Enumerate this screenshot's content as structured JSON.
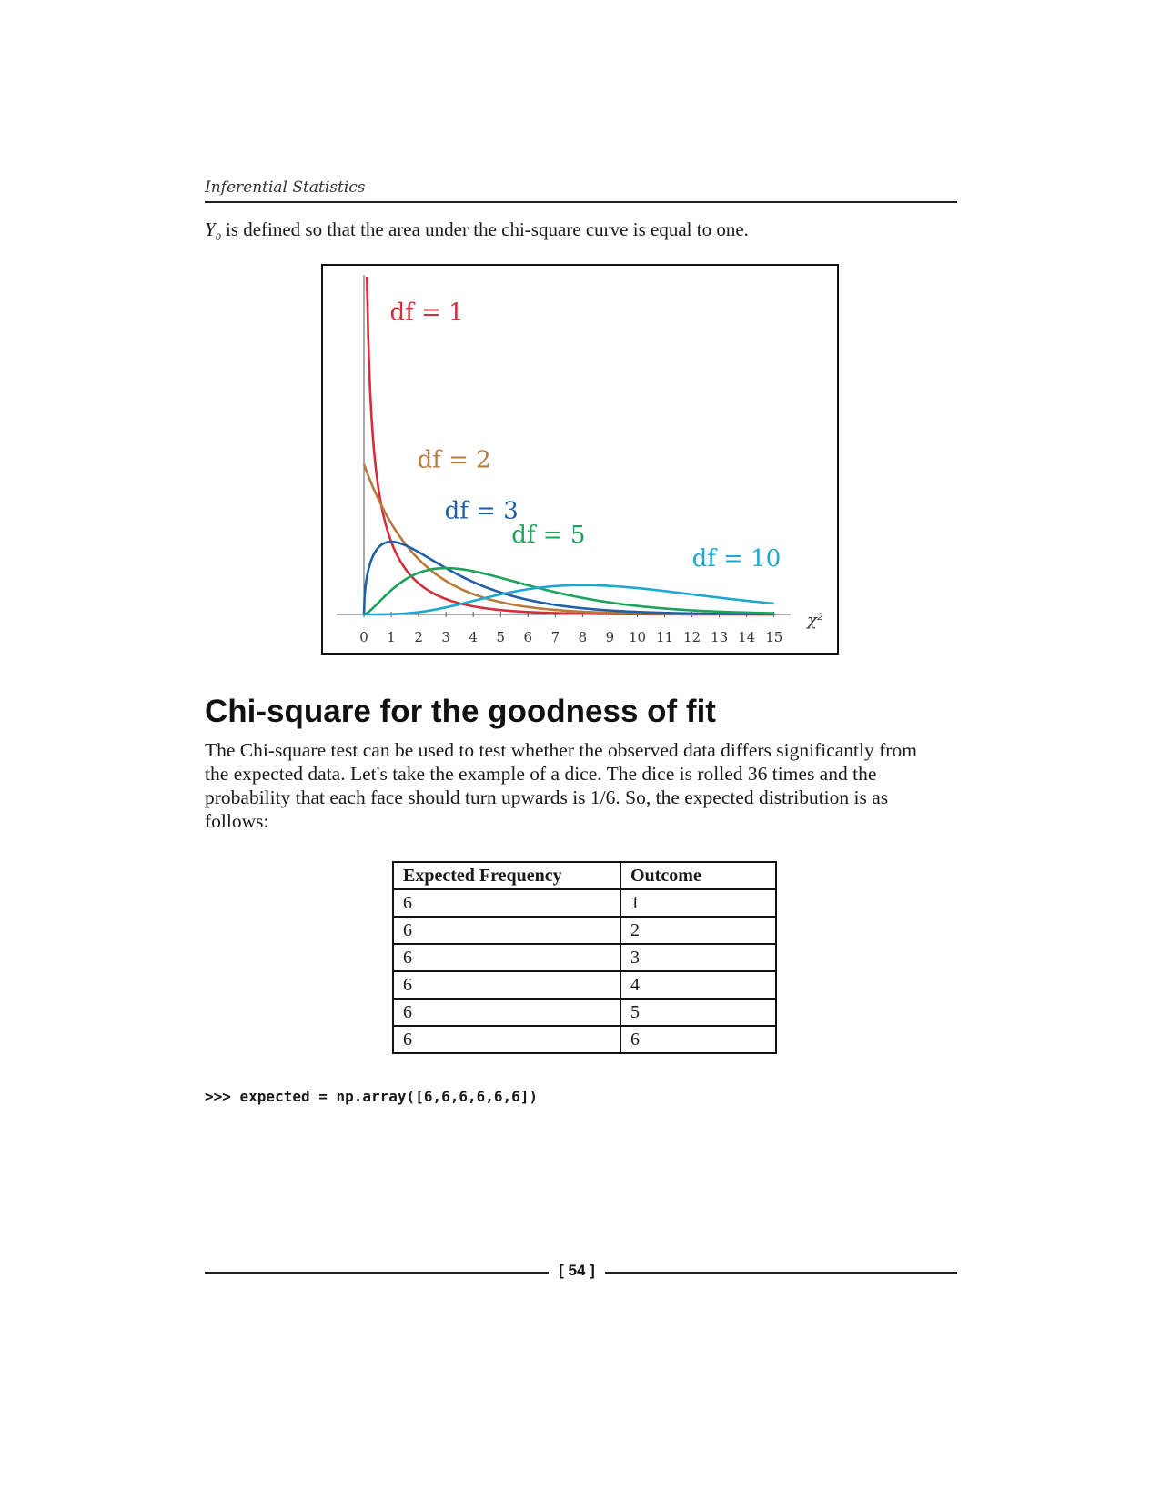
{
  "header": {
    "running_title": "Inferential Statistics"
  },
  "intro": {
    "symbol": "Y",
    "symbol_subscript": "0",
    "text": "is defined so that the area under the chi-square curve is equal to one."
  },
  "chart_data": {
    "type": "line",
    "title": "",
    "xlabel": "χ²",
    "ylabel": "",
    "xlim": [
      0,
      15
    ],
    "xticks": [
      "0",
      "1",
      "2",
      "3",
      "4",
      "5",
      "6",
      "7",
      "8",
      "9",
      "10",
      "11",
      "12",
      "13",
      "14",
      "15"
    ],
    "grid": false,
    "series": [
      {
        "name": "df = 1",
        "df": 1,
        "color": "#d62d3b"
      },
      {
        "name": "df = 2",
        "df": 2,
        "color": "#b87a3a"
      },
      {
        "name": "df = 3",
        "df": 3,
        "color": "#1f5fa8"
      },
      {
        "name": "df = 5",
        "df": 5,
        "color": "#1aa35a"
      },
      {
        "name": "df = 10",
        "df": 10,
        "color": "#19a9d4"
      }
    ]
  },
  "section": {
    "heading": "Chi-square for the goodness of fit",
    "paragraph": "The Chi-square test can be used to test whether the observed data differs significantly from the expected data. Let's take the example of a dice. The dice is rolled 36 times and the probability that each face should turn upwards is 1/6. So, the expected distribution is as follows:"
  },
  "table": {
    "headers": [
      "Expected Frequency",
      "Outcome"
    ],
    "rows": [
      [
        "6",
        "1"
      ],
      [
        "6",
        "2"
      ],
      [
        "6",
        "3"
      ],
      [
        "6",
        "4"
      ],
      [
        "6",
        "5"
      ],
      [
        "6",
        "6"
      ]
    ]
  },
  "code": ">>> expected = np.array([6,6,6,6,6,6])",
  "footer": {
    "page_number": "[ 54 ]"
  }
}
